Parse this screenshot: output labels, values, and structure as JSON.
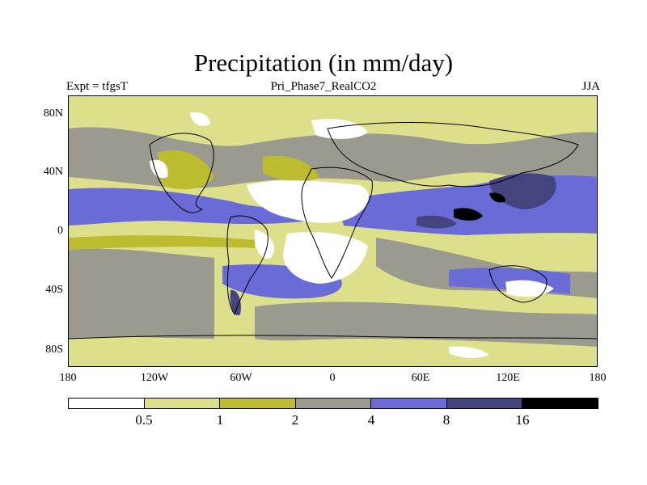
{
  "title": "Precipitation (in mm/day)",
  "subtitle_left": "Expt = tfgsT",
  "subtitle_center": "Pri_Phase7_RealCO2",
  "subtitle_right": "JJA",
  "y_ticks": [
    "80N",
    "40N",
    "0",
    "40S",
    "80S"
  ],
  "x_ticks": [
    "180",
    "120W",
    "60W",
    "0",
    "60E",
    "120E",
    "180"
  ],
  "legend": {
    "labels": [
      "0.5",
      "1",
      "2",
      "4",
      "8",
      "16"
    ],
    "colors": [
      "#ffffff",
      "#dde08a",
      "#bdbb2f",
      "#9a9a8e",
      "#6b6bd8",
      "#44447e",
      "#000000"
    ]
  },
  "palette": {
    "white": "#ffffff",
    "light_yellow": "#dde08a",
    "olive": "#bdbb2f",
    "gray": "#9a9a8e",
    "blue": "#6b6bd8",
    "dark_blue": "#44447e",
    "black": "#000000"
  }
}
